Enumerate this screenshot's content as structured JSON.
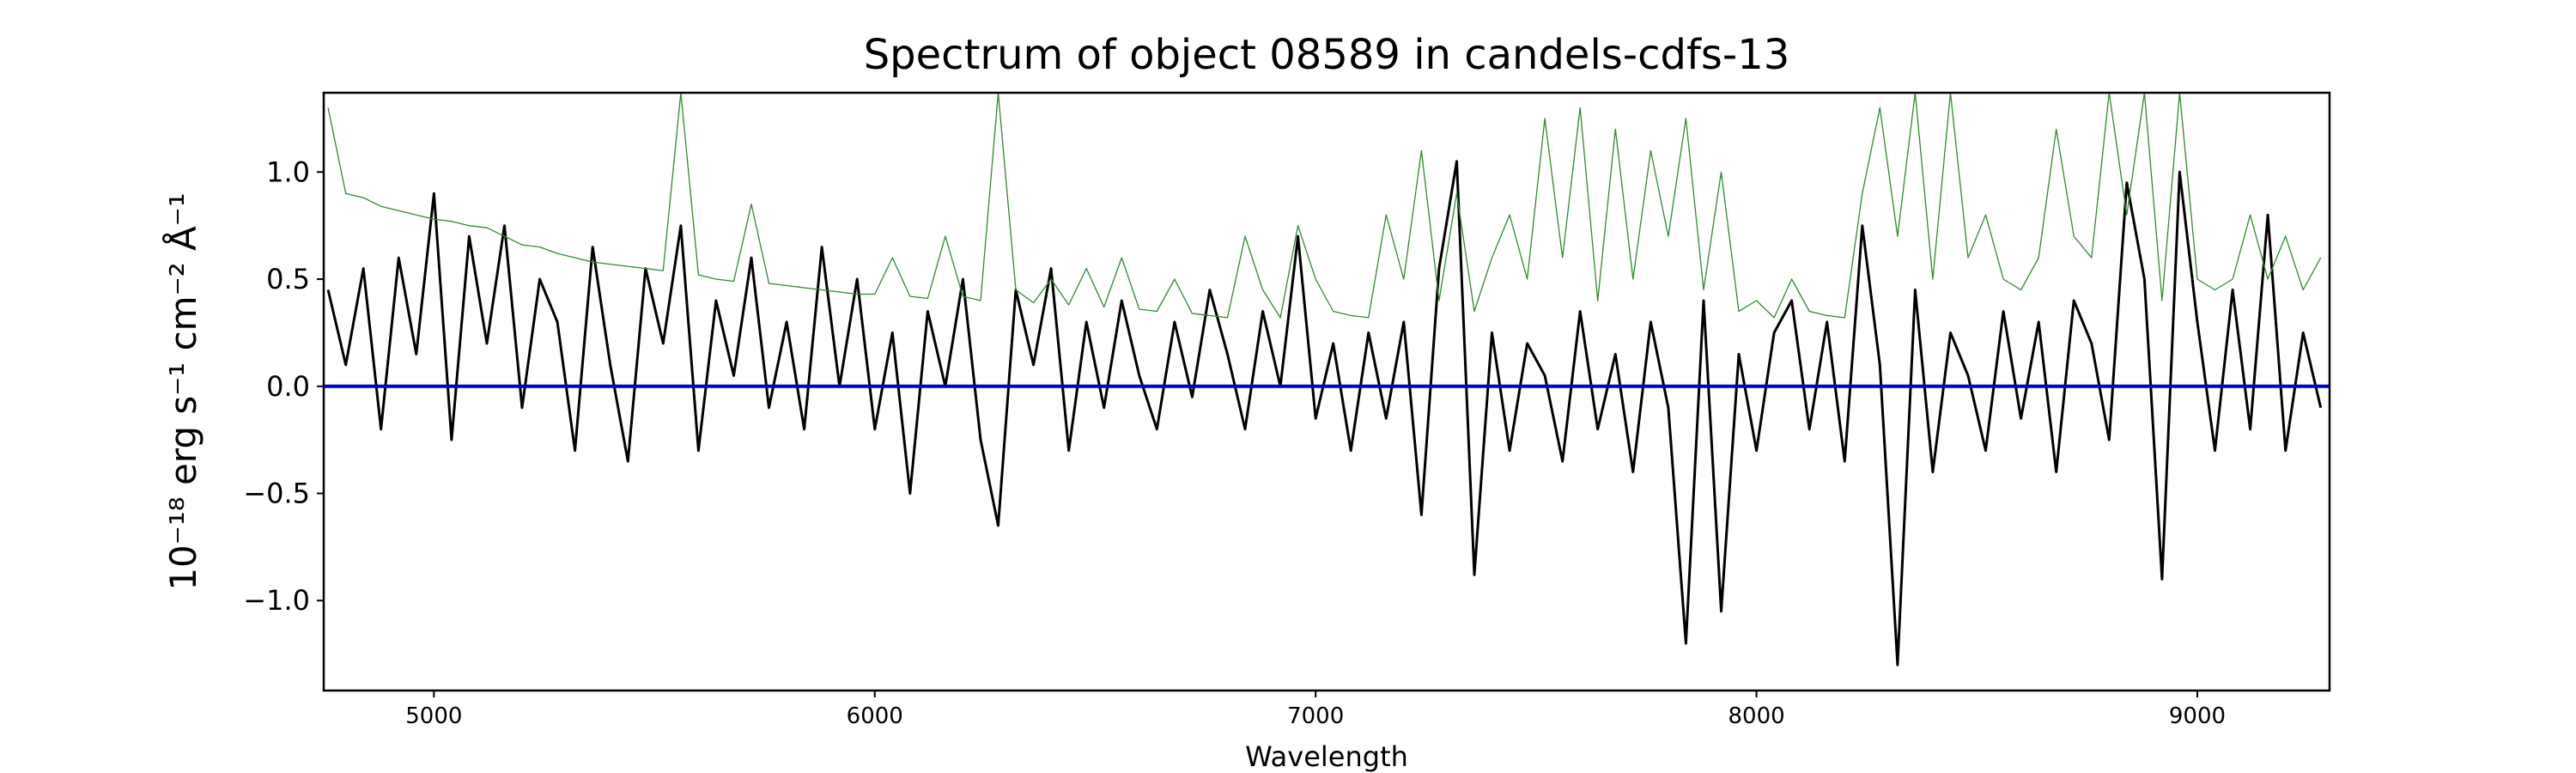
{
  "chart_data": {
    "type": "line",
    "title": "Spectrum of object 08589 in candels-cdfs-13",
    "xlabel": "Wavelength",
    "ylabel": "10⁻¹⁸ erg s⁻¹ cm⁻² Å⁻¹",
    "xlim": [
      4750,
      9300
    ],
    "ylim": [
      -1.42,
      1.37
    ],
    "xticks": [
      5000,
      6000,
      7000,
      8000,
      9000
    ],
    "yticks": [
      {
        "value": -1.0,
        "label": "−1.0"
      },
      {
        "value": -0.5,
        "label": "−0.5"
      },
      {
        "value": 0.0,
        "label": "0.0"
      },
      {
        "value": 0.5,
        "label": "0.5"
      },
      {
        "value": 1.0,
        "label": "1.0"
      }
    ],
    "x": [
      4760,
      4800,
      4840,
      4880,
      4920,
      4960,
      5000,
      5040,
      5080,
      5120,
      5160,
      5200,
      5240,
      5280,
      5320,
      5360,
      5400,
      5440,
      5480,
      5520,
      5560,
      5600,
      5640,
      5680,
      5720,
      5760,
      5800,
      5840,
      5880,
      5920,
      5960,
      6000,
      6040,
      6080,
      6120,
      6160,
      6200,
      6240,
      6280,
      6320,
      6360,
      6400,
      6440,
      6480,
      6520,
      6560,
      6600,
      6640,
      6680,
      6720,
      6760,
      6800,
      6840,
      6880,
      6920,
      6960,
      7000,
      7040,
      7080,
      7120,
      7160,
      7200,
      7240,
      7280,
      7320,
      7360,
      7400,
      7440,
      7480,
      7520,
      7560,
      7600,
      7640,
      7680,
      7720,
      7760,
      7800,
      7840,
      7880,
      7920,
      7960,
      8000,
      8040,
      8080,
      8120,
      8160,
      8200,
      8240,
      8280,
      8320,
      8360,
      8400,
      8440,
      8480,
      8520,
      8560,
      8600,
      8640,
      8680,
      8720,
      8760,
      8800,
      8840,
      8880,
      8920,
      8960,
      9000,
      9040,
      9080,
      9120,
      9160,
      9200,
      9240,
      9280
    ],
    "series": [
      {
        "color": "#000000",
        "width": 3,
        "values": [
          0.45,
          0.1,
          0.55,
          -0.2,
          0.6,
          0.15,
          0.9,
          -0.25,
          0.7,
          0.2,
          0.75,
          -0.1,
          0.5,
          0.3,
          -0.3,
          0.65,
          0.1,
          -0.35,
          0.55,
          0.2,
          0.75,
          -0.3,
          0.4,
          0.05,
          0.6,
          -0.1,
          0.3,
          -0.2,
          0.65,
          0.0,
          0.5,
          -0.2,
          0.25,
          -0.5,
          0.35,
          0.0,
          0.5,
          -0.25,
          -0.65,
          0.45,
          0.1,
          0.55,
          -0.3,
          0.3,
          -0.1,
          0.4,
          0.05,
          -0.2,
          0.3,
          -0.05,
          0.45,
          0.15,
          -0.2,
          0.35,
          0.0,
          0.7,
          -0.15,
          0.2,
          -0.3,
          0.25,
          -0.15,
          0.3,
          -0.6,
          0.55,
          1.05,
          -0.88,
          0.25,
          -0.3,
          0.2,
          0.05,
          -0.35,
          0.35,
          -0.2,
          0.15,
          -0.4,
          0.3,
          -0.1,
          -1.2,
          0.4,
          -1.05,
          0.15,
          -0.3,
          0.25,
          0.4,
          -0.2,
          0.3,
          -0.35,
          0.75,
          0.1,
          -1.3,
          0.45,
          -0.4,
          0.25,
          0.05,
          -0.3,
          0.35,
          -0.15,
          0.3,
          -0.4,
          0.4,
          0.2,
          -0.25,
          0.95,
          0.5,
          -0.9,
          1.0,
          0.3,
          -0.3,
          0.45,
          -0.2,
          0.8,
          -0.3,
          0.25,
          -0.1
        ]
      },
      {
        "color": "#2e8b2e",
        "width": 1.3,
        "values": [
          1.3,
          0.9,
          0.88,
          0.84,
          0.82,
          0.8,
          0.78,
          0.77,
          0.75,
          0.74,
          0.7,
          0.66,
          0.65,
          0.62,
          0.6,
          0.58,
          0.57,
          0.56,
          0.55,
          0.54,
          1.37,
          0.52,
          0.5,
          0.49,
          0.85,
          0.48,
          0.47,
          0.46,
          0.45,
          0.44,
          0.43,
          0.43,
          0.6,
          0.42,
          0.41,
          0.7,
          0.42,
          0.4,
          1.37,
          0.45,
          0.39,
          0.5,
          0.38,
          0.55,
          0.37,
          0.6,
          0.36,
          0.35,
          0.5,
          0.34,
          0.33,
          0.32,
          0.7,
          0.45,
          0.32,
          0.75,
          0.5,
          0.35,
          0.33,
          0.32,
          0.8,
          0.5,
          1.1,
          0.4,
          0.9,
          0.35,
          0.6,
          0.8,
          0.5,
          1.25,
          0.6,
          1.3,
          0.4,
          1.2,
          0.5,
          1.1,
          0.7,
          1.25,
          0.45,
          1.0,
          0.35,
          0.4,
          0.32,
          0.5,
          0.35,
          0.33,
          0.32,
          0.9,
          1.3,
          0.7,
          1.37,
          0.5,
          1.37,
          0.6,
          0.8,
          0.5,
          0.45,
          0.6,
          1.2,
          0.7,
          0.6,
          1.37,
          0.8,
          1.37,
          0.4,
          1.37,
          0.5,
          0.45,
          0.5,
          0.8,
          0.5,
          0.7,
          0.45,
          0.6
        ]
      },
      {
        "color": "#0000cc",
        "width": 4,
        "x": [
          4750,
          9300
        ],
        "values": [
          0,
          0
        ]
      }
    ]
  }
}
